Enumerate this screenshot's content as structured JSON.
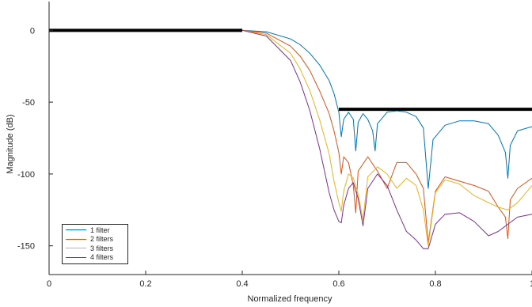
{
  "chart_data": {
    "type": "line",
    "title": "",
    "xlabel": "Normalized frequency",
    "ylabel": "Magnitude (dB)",
    "xlim": [
      0,
      1
    ],
    "ylim": [
      -170,
      20
    ],
    "xticks": [
      0,
      0.2,
      0.4,
      0.6,
      0.8,
      1
    ],
    "xtick_labels": [
      "0",
      "0.2",
      "0.4",
      "0.6",
      "0.8",
      "1"
    ],
    "yticks": [
      0,
      -50,
      -100,
      -150
    ],
    "ytick_labels": [
      "0",
      "-50",
      "-100",
      "-150"
    ],
    "grid": false,
    "legend_position": "bottom-left",
    "mask": [
      {
        "x": [
          0,
          0.4
        ],
        "y": [
          0,
          0
        ]
      },
      {
        "x": [
          0.6,
          1.0
        ],
        "y": [
          -55,
          -55
        ]
      }
    ],
    "mask_color": "#000000",
    "series": [
      {
        "name": "1 filter",
        "color": "#0072bd",
        "x": [
          0,
          0.1,
          0.2,
          0.3,
          0.4,
          0.45,
          0.5,
          0.52,
          0.54,
          0.56,
          0.58,
          0.59,
          0.6,
          0.605,
          0.61,
          0.62,
          0.63,
          0.635,
          0.64,
          0.65,
          0.66,
          0.67,
          0.675,
          0.68,
          0.7,
          0.72,
          0.74,
          0.76,
          0.775,
          0.785,
          0.795,
          0.82,
          0.85,
          0.88,
          0.91,
          0.93,
          0.945,
          0.95,
          0.955,
          0.97,
          1.0
        ],
        "y": [
          0,
          0,
          0,
          0,
          0,
          -1,
          -6,
          -10,
          -16,
          -24,
          -35,
          -44,
          -57,
          -74,
          -62,
          -57,
          -62,
          -84,
          -64,
          -58,
          -62,
          -70,
          -84,
          -65,
          -57,
          -56,
          -57,
          -60,
          -68,
          -110,
          -76,
          -66,
          -63,
          -63,
          -65,
          -73,
          -85,
          -103,
          -80,
          -70,
          -67
        ]
      },
      {
        "name": "2 filters",
        "color": "#d95319",
        "x": [
          0,
          0.1,
          0.2,
          0.3,
          0.4,
          0.45,
          0.5,
          0.52,
          0.54,
          0.56,
          0.58,
          0.59,
          0.6,
          0.605,
          0.61,
          0.62,
          0.63,
          0.635,
          0.64,
          0.66,
          0.68,
          0.7,
          0.72,
          0.74,
          0.76,
          0.775,
          0.785,
          0.8,
          0.82,
          0.85,
          0.88,
          0.91,
          0.93,
          0.945,
          0.95,
          0.955,
          0.97,
          1.0
        ],
        "y": [
          0,
          0,
          0,
          0,
          0,
          -2,
          -11,
          -18,
          -28,
          -42,
          -58,
          -70,
          -85,
          -100,
          -88,
          -92,
          -108,
          -127,
          -98,
          -88,
          -98,
          -110,
          -92,
          -92,
          -100,
          -110,
          -148,
          -112,
          -102,
          -105,
          -108,
          -112,
          -123,
          -130,
          -145,
          -118,
          -110,
          -103
        ]
      },
      {
        "name": "3 filters",
        "color": "#edb120",
        "x": [
          0,
          0.1,
          0.2,
          0.3,
          0.4,
          0.45,
          0.5,
          0.52,
          0.54,
          0.56,
          0.58,
          0.59,
          0.6,
          0.605,
          0.61,
          0.62,
          0.63,
          0.64,
          0.65,
          0.66,
          0.68,
          0.7,
          0.72,
          0.74,
          0.76,
          0.775,
          0.785,
          0.8,
          0.82,
          0.85,
          0.88,
          0.91,
          0.93,
          0.95,
          0.97,
          1.0
        ],
        "y": [
          0,
          0,
          0,
          0,
          0,
          -3,
          -16,
          -27,
          -42,
          -62,
          -86,
          -105,
          -120,
          -126,
          -112,
          -100,
          -103,
          -114,
          -132,
          -102,
          -95,
          -100,
          -110,
          -103,
          -108,
          -125,
          -150,
          -113,
          -104,
          -107,
          -115,
          -120,
          -123,
          -125,
          -120,
          -108
        ]
      },
      {
        "name": "4 filters",
        "color": "#7e2f8e",
        "x": [
          0,
          0.1,
          0.2,
          0.3,
          0.4,
          0.45,
          0.5,
          0.52,
          0.54,
          0.56,
          0.58,
          0.59,
          0.6,
          0.605,
          0.61,
          0.62,
          0.63,
          0.64,
          0.65,
          0.66,
          0.68,
          0.7,
          0.72,
          0.74,
          0.76,
          0.775,
          0.785,
          0.8,
          0.82,
          0.85,
          0.88,
          0.91,
          0.93,
          0.95,
          0.97,
          1.0
        ],
        "y": [
          0,
          0,
          0,
          0,
          0,
          -4,
          -21,
          -36,
          -56,
          -82,
          -113,
          -125,
          -133,
          -134,
          -122,
          -110,
          -106,
          -117,
          -136,
          -110,
          -100,
          -108,
          -125,
          -140,
          -146,
          -152,
          -152,
          -135,
          -128,
          -127,
          -133,
          -143,
          -140,
          -135,
          -130,
          -128
        ]
      }
    ]
  }
}
